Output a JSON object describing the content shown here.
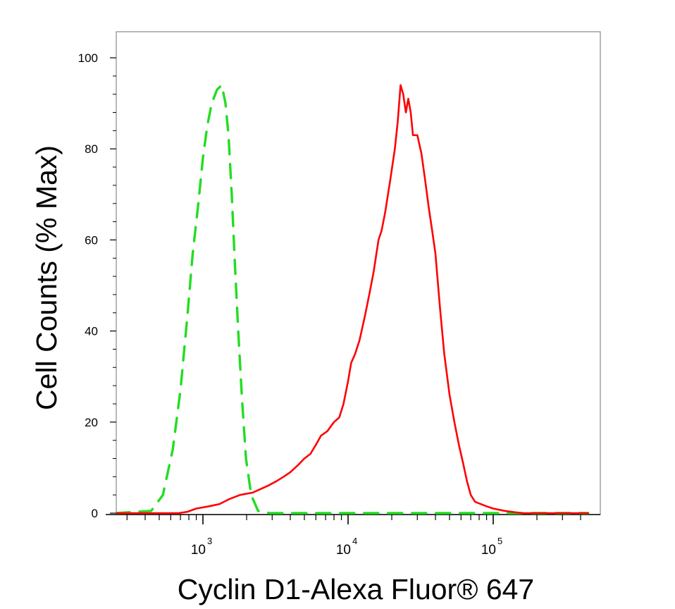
{
  "chart_data": {
    "type": "line",
    "xlabel": "Cyclin D1-Alexa Fluor® 647",
    "ylabel": "Cell Counts (% Max)",
    "x_scale": "log",
    "xlim": [
      250,
      450000
    ],
    "ylim": [
      0,
      103
    ],
    "x_tick_labels": [
      {
        "value": 1000,
        "base": "10",
        "exp": "3"
      },
      {
        "value": 10000,
        "base": "10",
        "exp": "4"
      },
      {
        "value": 100000,
        "base": "10",
        "exp": "5"
      }
    ],
    "y_ticks": [
      0,
      20,
      40,
      60,
      80,
      100
    ],
    "grid": false,
    "legend": "none",
    "series": [
      {
        "style": "dashed",
        "color": "#22dd22",
        "points": [
          [
            250,
            0
          ],
          [
            440,
            0.5
          ],
          [
            530,
            4
          ],
          [
            620,
            14
          ],
          [
            700,
            27
          ],
          [
            780,
            43
          ],
          [
            850,
            57
          ],
          [
            930,
            68
          ],
          [
            1000,
            78
          ],
          [
            1070,
            85
          ],
          [
            1150,
            90
          ],
          [
            1250,
            93
          ],
          [
            1350,
            94
          ],
          [
            1430,
            90
          ],
          [
            1500,
            83
          ],
          [
            1580,
            70
          ],
          [
            1660,
            55
          ],
          [
            1750,
            40
          ],
          [
            1860,
            25
          ],
          [
            1980,
            12
          ],
          [
            2150,
            4
          ],
          [
            2400,
            0.5
          ],
          [
            2900,
            0
          ],
          [
            450000,
            0
          ]
        ]
      },
      {
        "style": "solid",
        "color": "#ff0000",
        "points": [
          [
            250,
            0
          ],
          [
            400,
            0
          ],
          [
            560,
            0
          ],
          [
            680,
            0
          ],
          [
            780,
            0.3
          ],
          [
            900,
            1
          ],
          [
            1100,
            1.5
          ],
          [
            1300,
            2
          ],
          [
            1500,
            3
          ],
          [
            1800,
            4
          ],
          [
            2200,
            4.5
          ],
          [
            2800,
            6
          ],
          [
            3200,
            7
          ],
          [
            3600,
            8
          ],
          [
            4000,
            9
          ],
          [
            4500,
            10.5
          ],
          [
            5000,
            12
          ],
          [
            5500,
            13
          ],
          [
            6000,
            15
          ],
          [
            6500,
            17
          ],
          [
            7200,
            18
          ],
          [
            8000,
            20
          ],
          [
            8700,
            21
          ],
          [
            9300,
            24
          ],
          [
            10000,
            29
          ],
          [
            10500,
            33
          ],
          [
            11200,
            35
          ],
          [
            12000,
            38
          ],
          [
            13000,
            43
          ],
          [
            14000,
            48
          ],
          [
            15000,
            53
          ],
          [
            16200,
            60
          ],
          [
            17000,
            62
          ],
          [
            18000,
            66
          ],
          [
            19500,
            73
          ],
          [
            21000,
            80
          ],
          [
            22000,
            86
          ],
          [
            23000,
            94
          ],
          [
            24000,
            92
          ],
          [
            25000,
            88
          ],
          [
            26000,
            91
          ],
          [
            27000,
            88
          ],
          [
            28000,
            83
          ],
          [
            30000,
            83
          ],
          [
            32000,
            79
          ],
          [
            34000,
            73
          ],
          [
            36000,
            67
          ],
          [
            38000,
            62
          ],
          [
            40000,
            57
          ],
          [
            43000,
            45
          ],
          [
            46000,
            35
          ],
          [
            50000,
            26
          ],
          [
            54000,
            20
          ],
          [
            58000,
            15
          ],
          [
            62000,
            11
          ],
          [
            66000,
            7
          ],
          [
            70000,
            4
          ],
          [
            75000,
            2.5
          ],
          [
            82000,
            2
          ],
          [
            90000,
            1.5
          ],
          [
            100000,
            1
          ],
          [
            120000,
            0.5
          ],
          [
            140000,
            0.2
          ],
          [
            160000,
            0
          ],
          [
            450000,
            0
          ]
        ]
      }
    ]
  }
}
